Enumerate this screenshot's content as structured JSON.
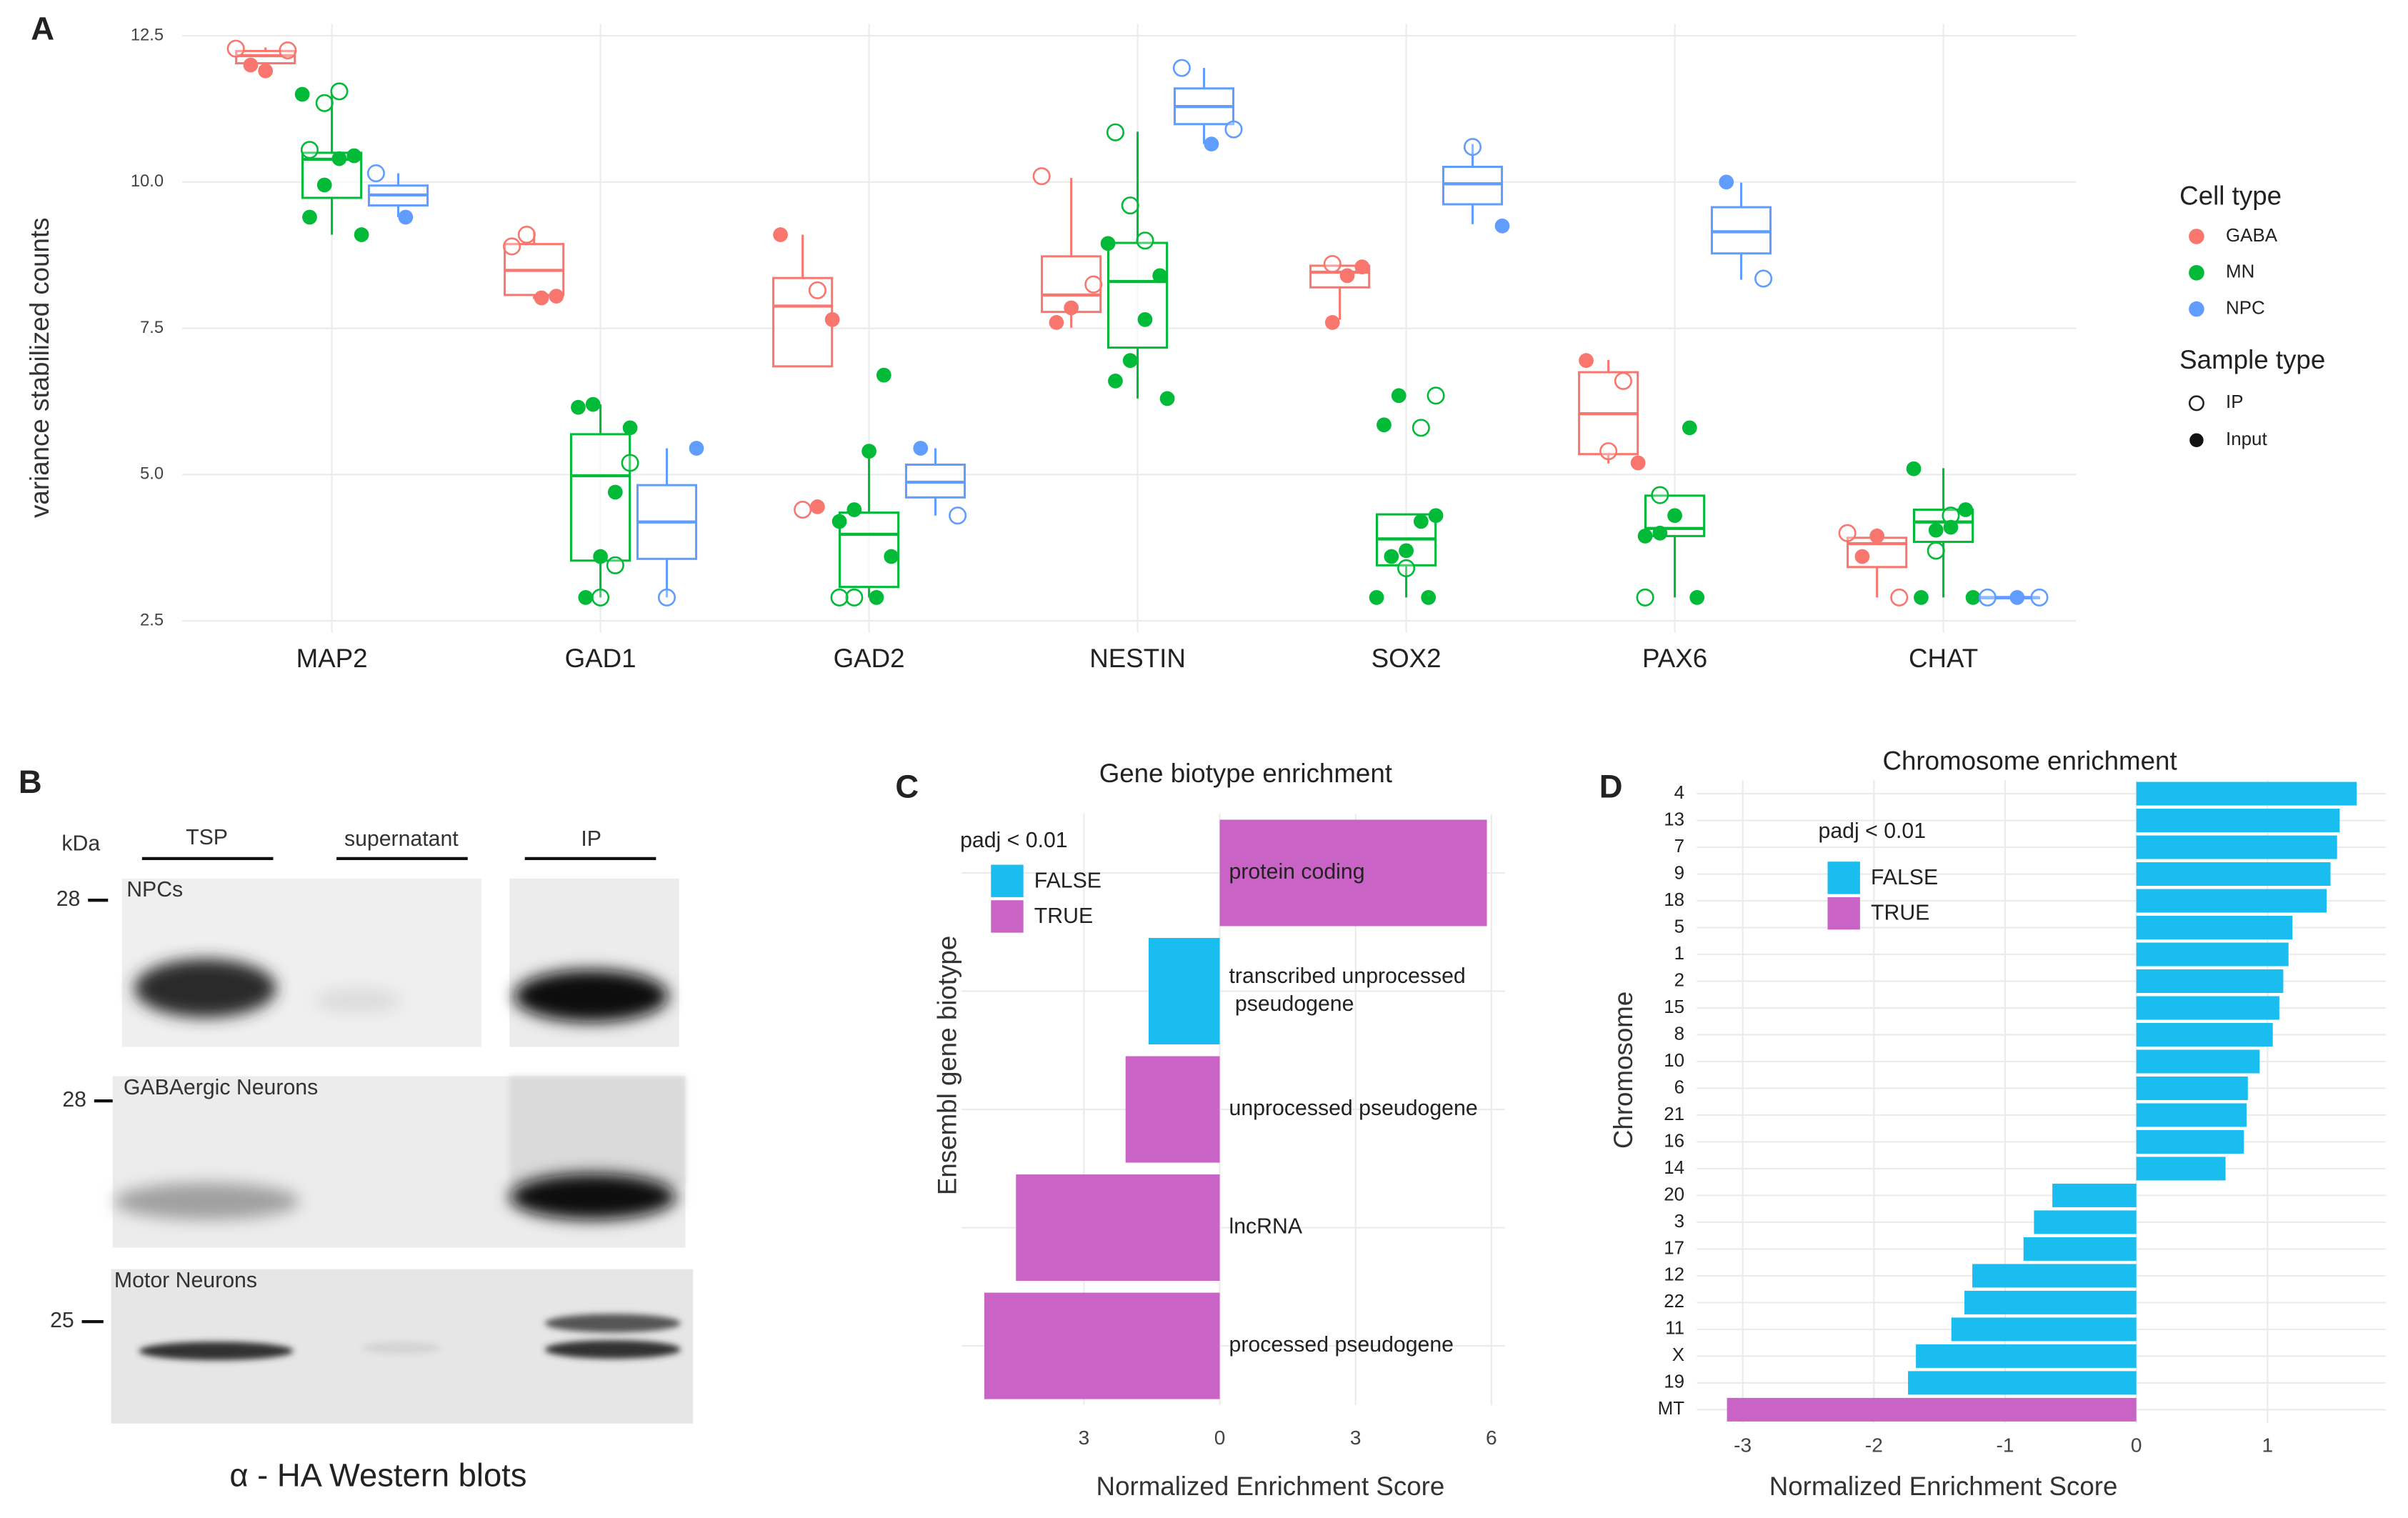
{
  "chart_data": [
    {
      "type": "box",
      "label": "A",
      "ylabel": "variance stabilized counts",
      "categories": [
        "MAP2",
        "GAD1",
        "GAD2",
        "NESTIN",
        "SOX2",
        "PAX6",
        "CHAT"
      ],
      "ylim": [
        2.3,
        12.7
      ],
      "yticks": [
        2.5,
        {
          "value": 5,
          "label": "5.0"
        },
        7.5,
        {
          "value": 10,
          "label": "10.0"
        },
        12.5
      ],
      "grid": true,
      "legend_title": "Cell type",
      "sample_legend": {
        "title": "Sample type",
        "entries": [
          "IP",
          "Input"
        ]
      },
      "series": [
        {
          "name": "GABA",
          "color": "#f8766d",
          "boxes": [
            [
              12.0,
              12.03,
              12.16,
              12.24,
              12.3
            ],
            [
              8.0,
              8.07,
              8.49,
              8.94,
              9.15
            ],
            [
              6.85,
              6.85,
              7.88,
              8.36,
              9.1
            ],
            [
              7.51,
              7.78,
              8.07,
              8.73,
              10.07
            ],
            [
              7.65,
              8.2,
              8.46,
              8.57,
              8.6
            ],
            [
              5.19,
              5.35,
              6.04,
              6.75,
              6.96
            ],
            [
              2.9,
              3.42,
              3.82,
              3.92,
              4.08
            ]
          ],
          "ip": [
            [
              12.28,
              12.25
            ],
            [
              9.1,
              8.9
            ],
            [
              8.15,
              4.4
            ],
            [
              10.1,
              8.25
            ],
            [
              8.6
            ],
            [
              6.6,
              5.4
            ],
            [
              4.0,
              2.9
            ]
          ],
          "input": [
            [
              11.9,
              12.0
            ],
            [
              8.05,
              8.02
            ],
            [
              9.1,
              7.65,
              4.45
            ],
            [
              7.85,
              7.6
            ],
            [
              8.55,
              8.4,
              7.6
            ],
            [
              6.95,
              5.2
            ],
            [
              3.95,
              3.6
            ]
          ]
        },
        {
          "name": "MN",
          "color": "#00ba38",
          "boxes": [
            [
              9.1,
              9.73,
              10.39,
              10.5,
              11.5
            ],
            [
              2.9,
              3.53,
              4.98,
              5.69,
              6.2
            ],
            [
              2.9,
              3.08,
              3.98,
              4.35,
              5.32
            ],
            [
              6.3,
              7.17,
              8.3,
              8.96,
              10.86
            ],
            [
              2.9,
              3.45,
              3.9,
              4.32,
              4.32
            ],
            [
              2.9,
              3.95,
              4.08,
              4.64,
              4.64
            ],
            [
              2.9,
              3.85,
              4.19,
              4.4,
              5.11
            ]
          ],
          "ip": [
            [
              11.55,
              11.35,
              10.55
            ],
            [
              5.2,
              3.45,
              2.9
            ],
            [
              2.9,
              2.9
            ],
            [
              9.0,
              9.6,
              10.85
            ],
            [
              6.35,
              5.8,
              3.4
            ],
            [
              4.65,
              2.9
            ],
            [
              4.3,
              3.7
            ]
          ],
          "input": [
            [
              11.5,
              10.45,
              10.4,
              9.95,
              9.4,
              9.1
            ],
            [
              6.2,
              6.15,
              5.8,
              4.7,
              3.6,
              2.9
            ],
            [
              6.7,
              5.4,
              4.4,
              4.2,
              3.6,
              2.9
            ],
            [
              8.95,
              8.4,
              7.65,
              6.95,
              6.6,
              6.3
            ],
            [
              6.35,
              5.85,
              4.3,
              4.2,
              3.7,
              3.6,
              2.9,
              2.9
            ],
            [
              5.8,
              4.3,
              4.0,
              3.95,
              2.9
            ],
            [
              5.1,
              4.4,
              4.1,
              4.05,
              2.9,
              2.9
            ]
          ]
        },
        {
          "name": "NPC",
          "color": "#619cff",
          "boxes": [
            [
              9.4,
              9.6,
              9.78,
              9.94,
              10.15
            ],
            [
              2.9,
              3.56,
              4.19,
              4.82,
              5.45
            ],
            [
              4.3,
              4.61,
              4.87,
              5.17,
              5.45
            ],
            [
              10.65,
              10.99,
              11.29,
              11.6,
              11.95
            ],
            [
              9.28,
              9.62,
              9.97,
              10.26,
              10.65
            ],
            [
              8.33,
              8.78,
              9.15,
              9.57,
              9.99
            ],
            [
              2.9,
              2.9,
              2.9,
              2.9,
              2.9
            ]
          ],
          "ip": [
            [
              10.15
            ],
            [
              2.9
            ],
            [
              4.3
            ],
            [
              11.95,
              10.9
            ],
            [
              10.6
            ],
            [
              8.35
            ],
            [
              2.9,
              2.9
            ]
          ],
          "input": [
            [
              9.4
            ],
            [
              5.45
            ],
            [
              5.45
            ],
            [
              10.65
            ],
            [
              9.25
            ],
            [
              10.0
            ],
            [
              2.9
            ]
          ]
        }
      ]
    },
    {
      "type": "barh",
      "label": "C",
      "title": "Gene biotype enrichment",
      "ylabel": "Ensembl gene biotype",
      "xlabel": "Normalized Enrichment Score",
      "categories": [
        "protein coding",
        "transcribed unprocessed pseudogene",
        "unprocessed pseudogene",
        "lncRNA",
        "processed pseudogene"
      ],
      "values": [
        5.9,
        -1.57,
        -2.08,
        -4.5,
        -5.2
      ],
      "significant": [
        true,
        false,
        true,
        true,
        true
      ],
      "labels_inside": true,
      "xlim": [
        -5.7,
        6.3
      ],
      "xticks": [
        {
          "value": -3,
          "label": "3"
        },
        0,
        3,
        6
      ],
      "grid": true,
      "legend": {
        "title": "padj < 0.01",
        "entries": [
          {
            "name": "FALSE",
            "value": false,
            "color": "#19bdf0"
          },
          {
            "name": "TRUE",
            "value": true,
            "color": "#c963c6"
          }
        ]
      }
    },
    {
      "type": "barh",
      "label": "D",
      "title": "Chromosome enrichment",
      "ylabel": "Chromosome",
      "xlabel": "Normalized Enrichment Score",
      "categories": [
        "4",
        "13",
        "7",
        "9",
        "18",
        "5",
        "1",
        "2",
        "15",
        "8",
        "10",
        "6",
        "21",
        "16",
        "14",
        "20",
        "3",
        "17",
        "12",
        "22",
        "11",
        "X",
        "19",
        "MT"
      ],
      "values": [
        1.68,
        1.55,
        1.53,
        1.48,
        1.45,
        1.19,
        1.16,
        1.12,
        1.09,
        1.04,
        0.94,
        0.85,
        0.84,
        0.82,
        0.68,
        -0.64,
        -0.78,
        -0.86,
        -1.25,
        -1.31,
        -1.41,
        -1.68,
        -1.74,
        -3.12
      ],
      "significant": [
        false,
        false,
        false,
        false,
        false,
        false,
        false,
        false,
        false,
        false,
        false,
        false,
        false,
        false,
        false,
        false,
        false,
        false,
        false,
        false,
        false,
        false,
        false,
        true
      ],
      "labels_inside": false,
      "xlim": [
        -3.35,
        1.9
      ],
      "xticks": [
        -3,
        -2,
        -1,
        0,
        1
      ],
      "grid": true,
      "legend": {
        "title": "padj < 0.01",
        "entries": [
          {
            "name": "FALSE",
            "value": false,
            "color": "#19bdf0"
          },
          {
            "name": "TRUE",
            "value": true,
            "color": "#c963c6"
          }
        ]
      }
    }
  ],
  "blot": {
    "label": "B",
    "kda": "kDa",
    "lanes": [
      "TSP",
      "supernatant",
      "IP"
    ],
    "panels": [
      {
        "marker": "28",
        "name": "NPCs"
      },
      {
        "marker": "28",
        "name": "GABAergic Neurons"
      },
      {
        "marker": "25",
        "name": "Motor Neurons"
      }
    ],
    "caption": "α - HA Western blots"
  }
}
